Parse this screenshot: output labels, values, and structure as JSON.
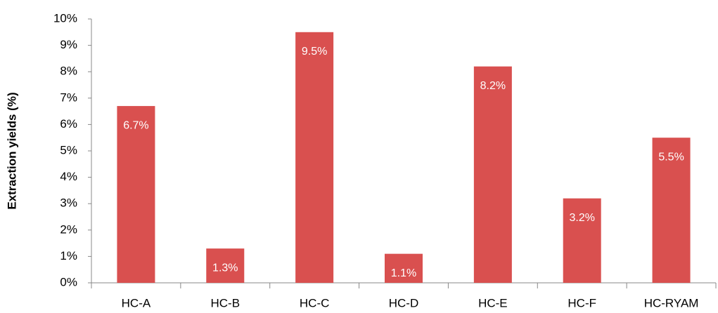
{
  "chart_data": {
    "type": "bar",
    "y_label": "Extraction yields (%)",
    "categories": [
      "HC-A",
      "HC-B",
      "HC-C",
      "HC-D",
      "HC-E",
      "HC-F",
      "HC-RYAM"
    ],
    "values": [
      6.7,
      1.3,
      9.5,
      1.1,
      8.2,
      3.2,
      5.5
    ],
    "value_labels": [
      "6.7%",
      "1.3%",
      "9.5%",
      "1.1%",
      "8.2%",
      "3.2%",
      "5.5%"
    ],
    "color": "#d9504f",
    "ylim": [
      0,
      10
    ],
    "yticks": [
      {
        "value": 0,
        "label": "0%"
      },
      {
        "value": 1,
        "label": "1%"
      },
      {
        "value": 2,
        "label": "2%"
      },
      {
        "value": 3,
        "label": "3%"
      },
      {
        "value": 4,
        "label": "4%"
      },
      {
        "value": 5,
        "label": "5%"
      },
      {
        "value": 6,
        "label": "6%"
      },
      {
        "value": 7,
        "label": "7%"
      },
      {
        "value": 8,
        "label": "8%"
      },
      {
        "value": 9,
        "label": "9%"
      },
      {
        "value": 10,
        "label": "10%"
      }
    ],
    "grid": false
  }
}
